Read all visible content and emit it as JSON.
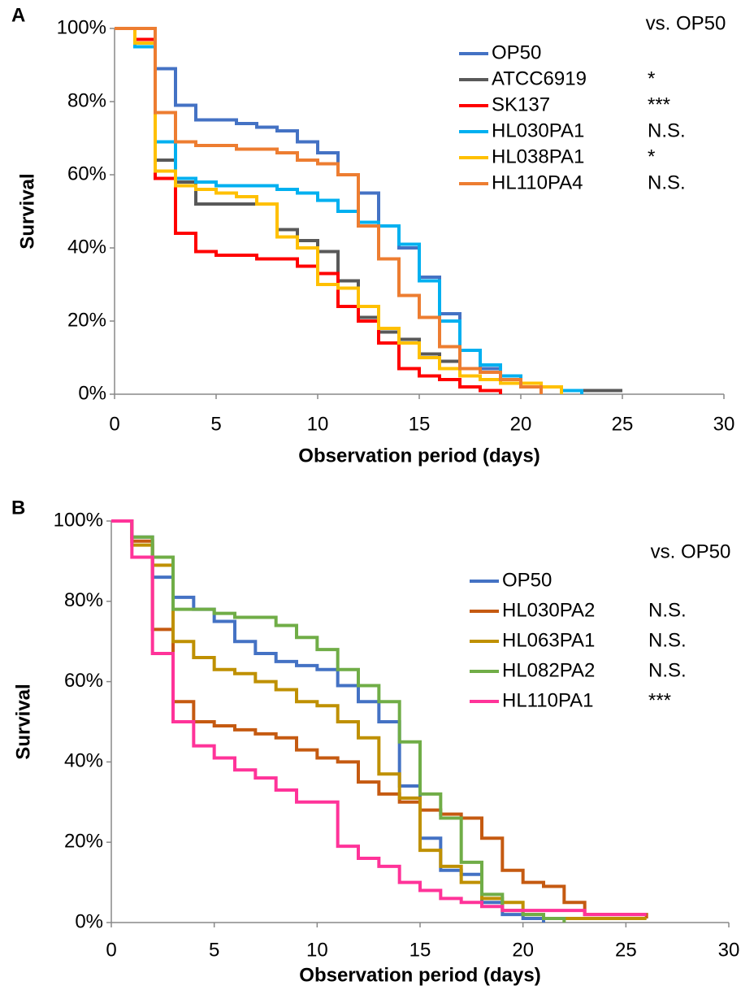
{
  "chart_data": [
    {
      "type": "step",
      "panel": "A",
      "xlabel": "Observation period (days)",
      "ylabel": "Survival",
      "legend_title": "vs. OP50",
      "xlim": [
        0,
        30
      ],
      "xticks": [
        0,
        5,
        10,
        15,
        20,
        25,
        30
      ],
      "ylim": [
        0,
        100
      ],
      "yticks": [
        {
          "value": 0,
          "label": "0%"
        },
        {
          "value": 20,
          "label": "20%"
        },
        {
          "value": 40,
          "label": "40%"
        },
        {
          "value": 60,
          "label": "60%"
        },
        {
          "value": 80,
          "label": "80%"
        },
        {
          "value": 100,
          "label": "100%"
        }
      ],
      "x": [
        0,
        1,
        2,
        3,
        4,
        5,
        6,
        7,
        8,
        9,
        10,
        11,
        12,
        13,
        14,
        15,
        16,
        17,
        18,
        19,
        20,
        21,
        22,
        23,
        24,
        25
      ],
      "series": [
        {
          "name": "OP50",
          "color": "#4472c4",
          "values": [
            100,
            97,
            89,
            79,
            75,
            75,
            74,
            73,
            72,
            69,
            66,
            60,
            55,
            46,
            40,
            32,
            22,
            12,
            7,
            4,
            2,
            0,
            null,
            null,
            null,
            null
          ]
        },
        {
          "name": "ATCC6919",
          "significance": "*",
          "color": "#595959",
          "values": [
            100,
            97,
            64,
            58,
            52,
            52,
            52,
            52,
            45,
            42,
            39,
            31,
            21,
            17,
            15,
            11,
            9,
            5,
            4,
            4,
            3,
            2,
            1,
            1,
            1,
            1
          ]
        },
        {
          "name": "SK137",
          "significance": "***",
          "color": "#ff0000",
          "values": [
            100,
            97,
            59,
            44,
            39,
            38,
            38,
            37,
            37,
            35,
            33,
            24,
            20,
            14,
            7,
            5,
            4,
            2,
            1,
            0,
            null,
            null,
            null,
            null,
            null,
            null
          ]
        },
        {
          "name": "HL030PA1",
          "significance": "N.S.",
          "color": "#00b0f0",
          "values": [
            100,
            95,
            69,
            59,
            58,
            57,
            57,
            57,
            56,
            55,
            53,
            50,
            47,
            46,
            41,
            31,
            20,
            12,
            8,
            5,
            3,
            2,
            1,
            0,
            null,
            null
          ]
        },
        {
          "name": "HL038PA1",
          "significance": "*",
          "color": "#ffc000",
          "values": [
            100,
            96,
            61,
            57,
            56,
            55,
            54,
            52,
            43,
            40,
            30,
            29,
            24,
            18,
            14,
            10,
            7,
            5,
            4,
            3,
            3,
            2,
            0,
            null,
            null,
            null
          ]
        },
        {
          "name": "HL110PA4",
          "significance": "N.S.",
          "color": "#ed7d31",
          "values": [
            100,
            100,
            77,
            69,
            68,
            68,
            67,
            67,
            66,
            64,
            63,
            60,
            46,
            37,
            27,
            21,
            13,
            7,
            6,
            4,
            2,
            0,
            null,
            null,
            null,
            null
          ]
        }
      ]
    },
    {
      "type": "step",
      "panel": "B",
      "xlabel": "Observation period (days)",
      "ylabel": "Survival",
      "legend_title": "vs. OP50",
      "xlim": [
        0,
        30
      ],
      "xticks": [
        0,
        5,
        10,
        15,
        20,
        25,
        30
      ],
      "ylim": [
        0,
        100
      ],
      "yticks": [
        {
          "value": 0,
          "label": "0%"
        },
        {
          "value": 20,
          "label": "20%"
        },
        {
          "value": 40,
          "label": "40%"
        },
        {
          "value": 60,
          "label": "60%"
        },
        {
          "value": 80,
          "label": "80%"
        },
        {
          "value": 100,
          "label": "100%"
        }
      ],
      "x": [
        0,
        1,
        2,
        3,
        4,
        5,
        6,
        7,
        8,
        9,
        10,
        11,
        12,
        13,
        14,
        15,
        16,
        17,
        18,
        19,
        20,
        21,
        22,
        23,
        24,
        25,
        26
      ],
      "series": [
        {
          "name": "OP50",
          "color": "#4472c4",
          "values": [
            100,
            96,
            86,
            81,
            78,
            75,
            70,
            67,
            65,
            64,
            63,
            59,
            55,
            50,
            34,
            21,
            13,
            12,
            5,
            2,
            1,
            0,
            null,
            null,
            null,
            null,
            null
          ]
        },
        {
          "name": "HL030PA2",
          "significance": "N.S.",
          "color": "#c55a11",
          "values": [
            100,
            95,
            73,
            55,
            50,
            49,
            48,
            47,
            46,
            43,
            41,
            40,
            35,
            32,
            30,
            28,
            27,
            26,
            21,
            13,
            10,
            9,
            5,
            2,
            2,
            2,
            1
          ]
        },
        {
          "name": "HL063PA1",
          "significance": "N.S.",
          "color": "#bf9000",
          "values": [
            100,
            94,
            89,
            70,
            66,
            63,
            62,
            60,
            58,
            55,
            54,
            50,
            46,
            37,
            31,
            18,
            14,
            10,
            6,
            5,
            2,
            1,
            1,
            1,
            1,
            1,
            1
          ]
        },
        {
          "name": "HL082PA2",
          "significance": "N.S.",
          "color": "#70ad47",
          "values": [
            100,
            96,
            91,
            78,
            78,
            77,
            76,
            76,
            74,
            71,
            68,
            63,
            59,
            55,
            45,
            32,
            26,
            15,
            7,
            3,
            2,
            1,
            0,
            null,
            null,
            null,
            null
          ]
        },
        {
          "name": "HL110PA1",
          "significance": "***",
          "color": "#ff3399",
          "values": [
            100,
            91,
            67,
            50,
            44,
            41,
            38,
            36,
            33,
            30,
            30,
            19,
            16,
            14,
            10,
            8,
            6,
            5,
            4,
            3,
            3,
            3,
            3,
            2,
            2,
            2,
            2
          ]
        }
      ]
    }
  ]
}
